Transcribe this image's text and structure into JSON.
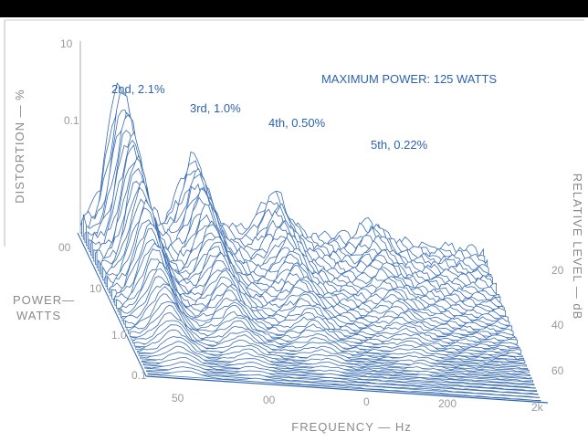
{
  "figure": {
    "title": "MAXIMUM POWER: 125 WATTS",
    "annotations": [
      "2nd, 2.1%",
      "3rd, 1.0%",
      "4th, 0.50%",
      "5th, 0.22%"
    ],
    "axes": {
      "distortion": {
        "label": "DISTORTION — %",
        "ticks": [
          "10",
          "0.1",
          "00"
        ]
      },
      "power": {
        "label_lines": [
          "POWER—",
          "WATTS"
        ],
        "ticks": [
          "10",
          "1.0",
          "0.1"
        ]
      },
      "frequency": {
        "label": "FREQUENCY — Hz",
        "ticks": [
          "50",
          "00",
          "0",
          "200",
          "2k"
        ]
      },
      "relative_level": {
        "label": "RELATIVE LEVEL — dB",
        "ticks": [
          "20",
          "40",
          "60"
        ]
      }
    }
  }
}
